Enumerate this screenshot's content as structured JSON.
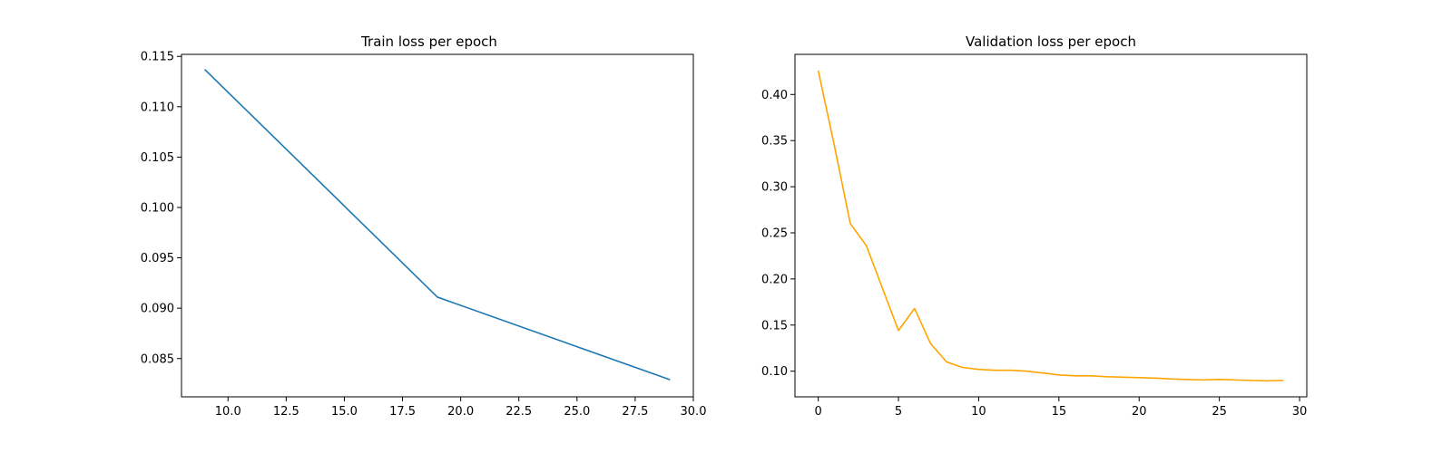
{
  "chart_data": [
    {
      "type": "line",
      "title": "Train loss per epoch",
      "xlabel": "",
      "ylabel": "",
      "xlim": [
        8.0,
        30.0
      ],
      "ylim": [
        0.0812,
        0.1152
      ],
      "xticks": [
        10.0,
        12.5,
        15.0,
        17.5,
        20.0,
        22.5,
        25.0,
        27.5,
        30.0
      ],
      "xtick_labels": [
        "10.0",
        "12.5",
        "15.0",
        "17.5",
        "20.0",
        "22.5",
        "25.0",
        "27.5",
        "30.0"
      ],
      "yticks": [
        0.085,
        0.09,
        0.095,
        0.1,
        0.105,
        0.11,
        0.115
      ],
      "ytick_labels": [
        "0.085",
        "0.090",
        "0.095",
        "0.100",
        "0.105",
        "0.110",
        "0.115"
      ],
      "grid": false,
      "series": [
        {
          "color": "#1f77b4",
          "x": [
            9,
            19,
            29
          ],
          "y": [
            0.1137,
            0.0911,
            0.0829
          ]
        }
      ]
    },
    {
      "type": "line",
      "title": "Validation loss per epoch",
      "xlabel": "",
      "ylabel": "",
      "xlim": [
        -1.45,
        30.45
      ],
      "ylim": [
        0.0722,
        0.4435
      ],
      "xticks": [
        0,
        5,
        10,
        15,
        20,
        25,
        30
      ],
      "xtick_labels": [
        "0",
        "5",
        "10",
        "15",
        "20",
        "25",
        "30"
      ],
      "yticks": [
        0.1,
        0.15,
        0.2,
        0.25,
        0.3,
        0.35,
        0.4
      ],
      "ytick_labels": [
        "0.10",
        "0.15",
        "0.20",
        "0.25",
        "0.30",
        "0.35",
        "0.40"
      ],
      "grid": false,
      "series": [
        {
          "color": "#ffa500",
          "x": [
            0,
            1,
            2,
            3,
            4,
            5,
            6,
            7,
            8,
            9,
            10,
            11,
            12,
            13,
            14,
            15,
            16,
            17,
            18,
            19,
            20,
            21,
            22,
            23,
            24,
            25,
            26,
            27,
            28,
            29
          ],
          "y": [
            0.426,
            0.345,
            0.26,
            0.236,
            0.19,
            0.144,
            0.168,
            0.13,
            0.11,
            0.104,
            0.102,
            0.101,
            0.101,
            0.1,
            0.098,
            0.096,
            0.095,
            0.095,
            0.094,
            0.0935,
            0.093,
            0.0925,
            0.0915,
            0.091,
            0.0905,
            0.091,
            0.0905,
            0.09,
            0.0895,
            0.09
          ]
        }
      ]
    }
  ]
}
